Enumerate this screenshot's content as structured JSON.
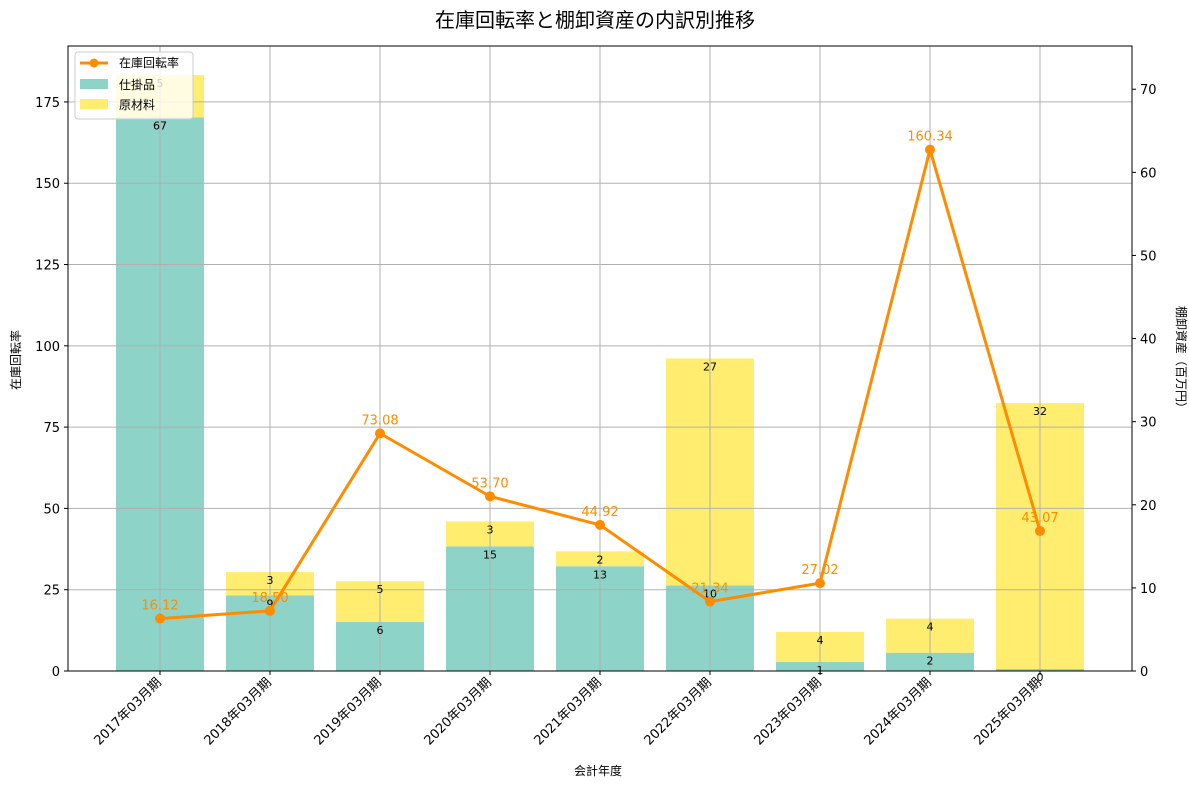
{
  "chart_data": {
    "type": "bar+line",
    "title": "在庫回転率と棚卸資産の内訳別推移",
    "xlabel": "会計年度",
    "ylabel_left": "在庫回転率",
    "ylabel_right": "棚卸資産（百万円）",
    "categories": [
      "2017年03月期",
      "2018年03月期",
      "2019年03月期",
      "2020年03月期",
      "2021年03月期",
      "2022年03月期",
      "2023年03月期",
      "2024年03月期",
      "2025年03月期"
    ],
    "ylim_left": [
      0,
      192.2
    ],
    "ylim_right": [
      0,
      75.2
    ],
    "yticks_left": [
      0,
      25,
      50,
      75,
      100,
      125,
      150,
      175
    ],
    "yticks_right": [
      0,
      10,
      20,
      30,
      40,
      50,
      60,
      70
    ],
    "grid": true,
    "legend_position": "upper left",
    "series": [
      {
        "name": "在庫回転率",
        "type": "line",
        "axis": "left",
        "color": "#ff8c00",
        "values": [
          16.12,
          18.5,
          73.08,
          53.7,
          44.92,
          21.34,
          27.02,
          160.34,
          43.07
        ],
        "labels": [
          "16.12",
          "18.50",
          "73.08",
          "53.70",
          "44.92",
          "21.34",
          "27.02",
          "160.34",
          "43.07"
        ]
      },
      {
        "name": "仕掛品",
        "type": "bar",
        "stack": "inventory",
        "axis": "right",
        "color": "#8dd3c7",
        "values": [
          66.6,
          9.1,
          5.9,
          15.0,
          12.6,
          10.3,
          1.1,
          2.2,
          0.24
        ],
        "labels": [
          "67",
          "9",
          "6",
          "15",
          "13",
          "10",
          "1",
          "2",
          "0"
        ]
      },
      {
        "name": "原材料",
        "type": "bar",
        "stack": "inventory",
        "axis": "right",
        "color": "#ffed6f",
        "values": [
          5.1,
          2.8,
          4.9,
          3.0,
          1.8,
          27.3,
          3.6,
          4.1,
          32.0
        ],
        "labels": [
          "5",
          "3",
          "5",
          "3",
          "2",
          "27",
          "4",
          "4",
          "32"
        ]
      }
    ]
  },
  "legend": {
    "items": [
      {
        "label": "在庫回転率",
        "icon": "line-marker-icon",
        "color": "#ff8c00"
      },
      {
        "label": "仕掛品",
        "icon": "swatch-icon",
        "color": "#8dd3c7"
      },
      {
        "label": "原材料",
        "icon": "swatch-icon",
        "color": "#ffed6f"
      }
    ]
  }
}
